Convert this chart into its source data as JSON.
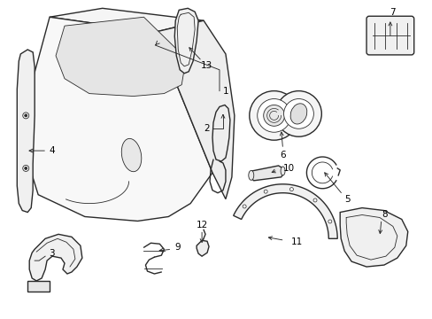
{
  "bg_color": "#ffffff",
  "line_color": "#2a2a2a",
  "lw_main": 1.0,
  "lw_thin": 0.6,
  "label_fontsize": 7.5,
  "figsize": [
    4.89,
    3.6
  ],
  "dpi": 100
}
